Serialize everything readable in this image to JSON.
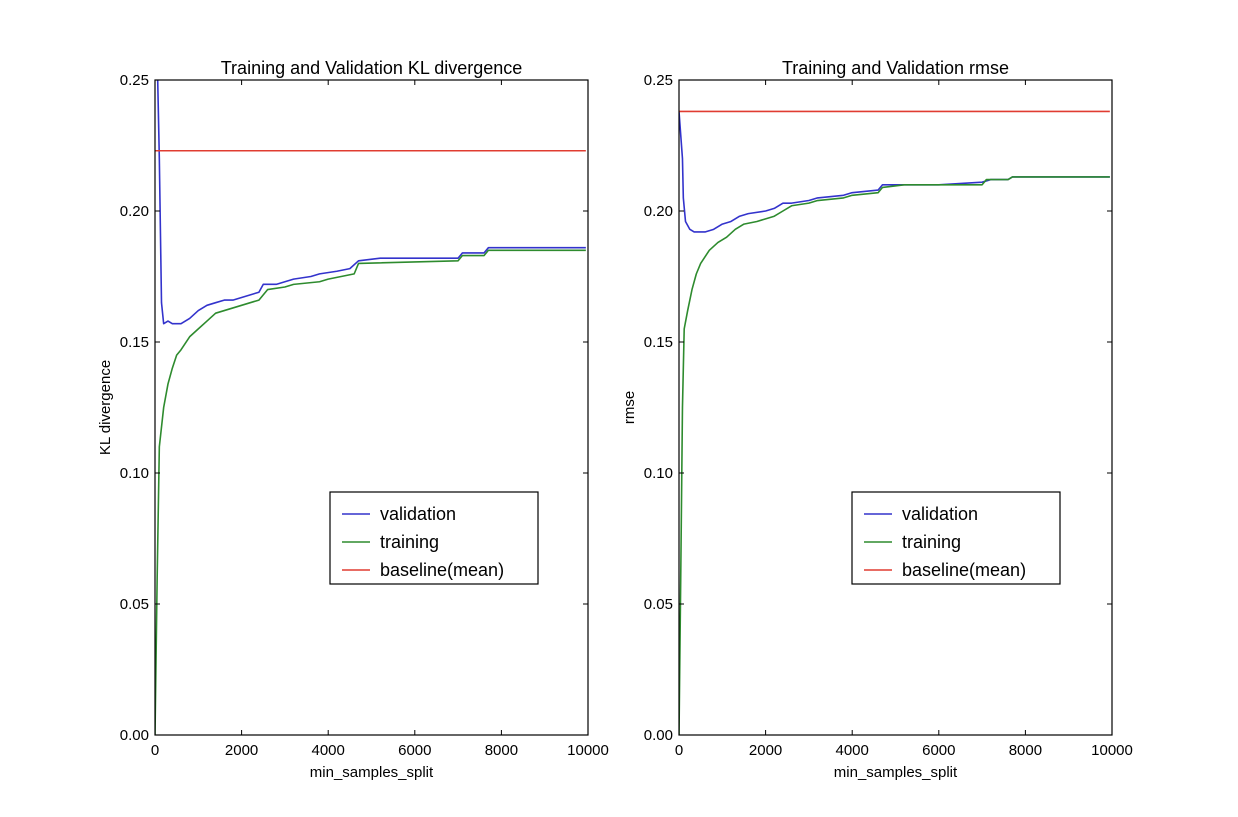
{
  "chart_data": [
    {
      "type": "line",
      "title": "Training and Validation KL divergence",
      "xlabel": "min_samples_split",
      "ylabel": "KL divergence",
      "xlim": [
        0,
        10000
      ],
      "ylim": [
        0,
        0.25
      ],
      "xticks": [
        0,
        2000,
        4000,
        6000,
        8000,
        10000
      ],
      "xtick_labels": [
        "0",
        "2000",
        "4000",
        "6000",
        "8000",
        "10000"
      ],
      "yticks": [
        0,
        0.05,
        0.1,
        0.15,
        0.2,
        0.25
      ],
      "ytick_labels": [
        "0.00",
        "0.05",
        "0.10",
        "0.15",
        "0.20",
        "0.25"
      ],
      "grid": false,
      "legend_position": "lower-right",
      "series": [
        {
          "name": "validation",
          "color": "#3333cc",
          "points": [
            [
              50,
              0.26
            ],
            [
              100,
              0.22
            ],
            [
              150,
              0.165
            ],
            [
              200,
              0.157
            ],
            [
              300,
              0.158
            ],
            [
              400,
              0.157
            ],
            [
              600,
              0.157
            ],
            [
              800,
              0.159
            ],
            [
              1000,
              0.162
            ],
            [
              1200,
              0.164
            ],
            [
              1400,
              0.165
            ],
            [
              1600,
              0.166
            ],
            [
              1800,
              0.166
            ],
            [
              2000,
              0.167
            ],
            [
              2200,
              0.168
            ],
            [
              2400,
              0.169
            ],
            [
              2500,
              0.172
            ],
            [
              2800,
              0.172
            ],
            [
              3000,
              0.173
            ],
            [
              3200,
              0.174
            ],
            [
              3600,
              0.175
            ],
            [
              3800,
              0.176
            ],
            [
              4200,
              0.177
            ],
            [
              4500,
              0.178
            ],
            [
              4700,
              0.181
            ],
            [
              5200,
              0.182
            ],
            [
              7000,
              0.182
            ],
            [
              7100,
              0.184
            ],
            [
              7600,
              0.184
            ],
            [
              7700,
              0.186
            ],
            [
              9950,
              0.186
            ]
          ]
        },
        {
          "name": "training",
          "color": "#2e8b2e",
          "points": [
            [
              0,
              0.0
            ],
            [
              50,
              0.06
            ],
            [
              100,
              0.11
            ],
            [
              200,
              0.125
            ],
            [
              300,
              0.134
            ],
            [
              400,
              0.14
            ],
            [
              500,
              0.145
            ],
            [
              600,
              0.147
            ],
            [
              800,
              0.152
            ],
            [
              1000,
              0.155
            ],
            [
              1200,
              0.158
            ],
            [
              1400,
              0.161
            ],
            [
              1600,
              0.162
            ],
            [
              1800,
              0.163
            ],
            [
              2000,
              0.164
            ],
            [
              2200,
              0.165
            ],
            [
              2400,
              0.166
            ],
            [
              2600,
              0.17
            ],
            [
              3000,
              0.171
            ],
            [
              3200,
              0.172
            ],
            [
              3800,
              0.173
            ],
            [
              4000,
              0.174
            ],
            [
              4600,
              0.176
            ],
            [
              4700,
              0.18
            ],
            [
              7000,
              0.181
            ],
            [
              7100,
              0.183
            ],
            [
              7600,
              0.183
            ],
            [
              7700,
              0.185
            ],
            [
              9950,
              0.185
            ]
          ]
        },
        {
          "name": "baseline(mean)",
          "color": "#e03c31",
          "points": [
            [
              0,
              0.223
            ],
            [
              9950,
              0.223
            ]
          ]
        }
      ]
    },
    {
      "type": "line",
      "title": "Training and Validation rmse",
      "xlabel": "min_samples_split",
      "ylabel": "rmse",
      "xlim": [
        0,
        10000
      ],
      "ylim": [
        0,
        0.25
      ],
      "xticks": [
        0,
        2000,
        4000,
        6000,
        8000,
        10000
      ],
      "xtick_labels": [
        "0",
        "2000",
        "4000",
        "6000",
        "8000",
        "10000"
      ],
      "yticks": [
        0,
        0.05,
        0.1,
        0.15,
        0.2,
        0.25
      ],
      "ytick_labels": [
        "0.00",
        "0.05",
        "0.10",
        "0.15",
        "0.20",
        "0.25"
      ],
      "grid": false,
      "legend_position": "lower-right",
      "series": [
        {
          "name": "validation",
          "color": "#3333cc",
          "points": [
            [
              0,
              0.238
            ],
            [
              80,
              0.22
            ],
            [
              100,
              0.205
            ],
            [
              150,
              0.196
            ],
            [
              250,
              0.193
            ],
            [
              350,
              0.192
            ],
            [
              600,
              0.192
            ],
            [
              800,
              0.193
            ],
            [
              1000,
              0.195
            ],
            [
              1200,
              0.196
            ],
            [
              1400,
              0.198
            ],
            [
              1600,
              0.199
            ],
            [
              2000,
              0.2
            ],
            [
              2200,
              0.201
            ],
            [
              2400,
              0.203
            ],
            [
              2600,
              0.203
            ],
            [
              3000,
              0.204
            ],
            [
              3200,
              0.205
            ],
            [
              3800,
              0.206
            ],
            [
              4000,
              0.207
            ],
            [
              4600,
              0.208
            ],
            [
              4700,
              0.21
            ],
            [
              5200,
              0.21
            ],
            [
              6000,
              0.21
            ],
            [
              7000,
              0.211
            ],
            [
              7200,
              0.212
            ],
            [
              7600,
              0.212
            ],
            [
              7700,
              0.213
            ],
            [
              9950,
              0.213
            ]
          ]
        },
        {
          "name": "training",
          "color": "#2e8b2e",
          "points": [
            [
              0,
              0.0
            ],
            [
              40,
              0.06
            ],
            [
              80,
              0.125
            ],
            [
              120,
              0.155
            ],
            [
              200,
              0.162
            ],
            [
              300,
              0.17
            ],
            [
              400,
              0.176
            ],
            [
              500,
              0.18
            ],
            [
              700,
              0.185
            ],
            [
              900,
              0.188
            ],
            [
              1100,
              0.19
            ],
            [
              1300,
              0.193
            ],
            [
              1500,
              0.195
            ],
            [
              1800,
              0.196
            ],
            [
              2000,
              0.197
            ],
            [
              2200,
              0.198
            ],
            [
              2400,
              0.2
            ],
            [
              2600,
              0.202
            ],
            [
              3000,
              0.203
            ],
            [
              3200,
              0.204
            ],
            [
              3800,
              0.205
            ],
            [
              4000,
              0.206
            ],
            [
              4600,
              0.207
            ],
            [
              4700,
              0.209
            ],
            [
              5200,
              0.21
            ],
            [
              7000,
              0.21
            ],
            [
              7100,
              0.212
            ],
            [
              7600,
              0.212
            ],
            [
              7700,
              0.213
            ],
            [
              9950,
              0.213
            ]
          ]
        },
        {
          "name": "baseline(mean)",
          "color": "#e03c31",
          "points": [
            [
              0,
              0.238
            ],
            [
              9950,
              0.238
            ]
          ]
        }
      ]
    }
  ]
}
